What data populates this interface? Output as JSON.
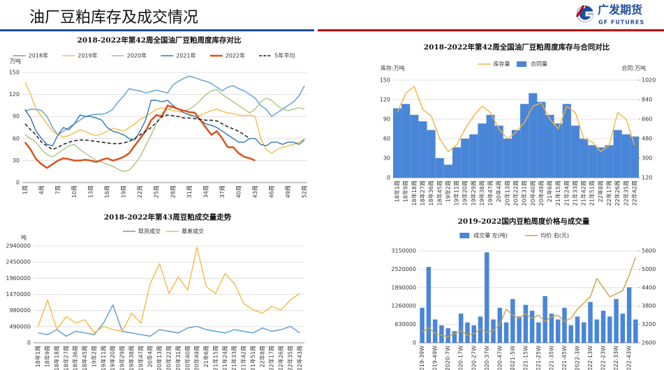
{
  "header": {
    "title": "油厂豆粕库存及成交情况",
    "logo": "广发期货",
    "logo_en": "GF FUTURES"
  },
  "chart_data": [
    {
      "type": "line",
      "title": "2018-2022年第42周全国油厂豆粕周度库存对比",
      "y_label": "万吨",
      "categories": [
        "1周",
        null,
        null,
        "4周",
        null,
        null,
        "7周",
        null,
        null,
        "10周",
        null,
        null,
        "13周",
        null,
        null,
        "16周",
        null,
        null,
        "19周",
        null,
        null,
        "22周",
        null,
        null,
        "25周",
        null,
        null,
        "28周",
        null,
        null,
        "31周",
        null,
        null,
        "34周",
        null,
        null,
        "37周",
        null,
        null,
        "40周",
        null,
        null,
        "43周",
        null,
        null,
        "46周",
        null,
        null,
        "49周",
        null,
        null,
        "52周"
      ],
      "ylim": [
        0,
        150
      ],
      "yticks": [
        0,
        30,
        60,
        90,
        120,
        150
      ],
      "grid": true,
      "series": [
        {
          "name": "2018年",
          "color": "#5b9bd5",
          "type": "line",
          "values": [
            97,
            100,
            100,
            98,
            90,
            75,
            65,
            70,
            75,
            80,
            85,
            90,
            92,
            93,
            93,
            95,
            100,
            110,
            118,
            128,
            126,
            125,
            122,
            124,
            126,
            124,
            122,
            133,
            138,
            142,
            145,
            143,
            140,
            138,
            135,
            130,
            125,
            130,
            132,
            128,
            125,
            120,
            115,
            105,
            100,
            90,
            95,
            100,
            105,
            110,
            118,
            132
          ]
        },
        {
          "name": "2019年",
          "color": "#f2bd4a",
          "type": "line",
          "values": [
            137,
            120,
            100,
            90,
            80,
            70,
            65,
            62,
            64,
            68,
            72,
            70,
            66,
            64,
            66,
            70,
            74,
            72,
            70,
            75,
            80,
            86,
            90,
            95,
            100,
            102,
            100,
            98,
            97,
            95,
            93,
            90,
            92,
            95,
            98,
            100,
            97,
            95,
            94,
            92,
            91,
            92,
            90,
            60,
            45,
            40,
            45,
            48,
            50,
            52,
            55,
            60
          ]
        },
        {
          "name": "2020年",
          "color": "#a9c47f",
          "type": "line",
          "values": [
            65,
            60,
            55,
            45,
            38,
            35,
            40,
            45,
            50,
            52,
            45,
            40,
            35,
            30,
            28,
            25,
            22,
            18,
            15,
            17,
            25,
            35,
            50,
            65,
            80,
            95,
            100,
            102,
            100,
            98,
            100,
            105,
            112,
            120,
            125,
            127,
            120,
            115,
            110,
            105,
            100,
            95,
            100,
            110,
            115,
            112,
            105,
            100,
            98,
            100,
            102,
            100
          ]
        },
        {
          "name": "2021年",
          "color": "#2e75b6",
          "type": "line",
          "values": [
            100,
            88,
            70,
            60,
            52,
            50,
            65,
            75,
            72,
            80,
            92,
            90,
            90,
            88,
            85,
            75,
            70,
            68,
            65,
            60,
            58,
            70,
            85,
            112,
            112,
            110,
            112,
            105,
            100,
            95,
            92,
            90,
            85,
            80,
            78,
            75,
            70,
            65,
            60,
            55,
            55,
            60,
            60,
            52,
            50,
            55,
            55,
            52,
            55,
            55,
            52,
            58
          ]
        },
        {
          "name": "2022年",
          "color": "#d9531e",
          "type": "line",
          "width": 2.5,
          "values": [
            55,
            45,
            32,
            25,
            20,
            25,
            30,
            33,
            32,
            30,
            30,
            31,
            30,
            28,
            31,
            33,
            30,
            32,
            35,
            40,
            50,
            60,
            70,
            85,
            92,
            90,
            105,
            103,
            100,
            98,
            96,
            95,
            85,
            75,
            65,
            70,
            60,
            48,
            48,
            40,
            35,
            33,
            30,
            null,
            null,
            null,
            null,
            null,
            null,
            null,
            null,
            null
          ]
        },
        {
          "name": "5年平均",
          "color": "#111111",
          "type": "line",
          "dashed": true,
          "values": [
            80,
            72,
            65,
            55,
            50,
            45,
            48,
            52,
            55,
            57,
            58,
            58,
            57,
            56,
            55,
            54,
            53,
            53,
            54,
            56,
            60,
            65,
            70,
            75,
            82,
            90,
            92,
            91,
            90,
            88,
            88,
            87,
            86,
            85,
            85,
            84,
            80,
            76,
            73,
            70,
            65,
            60,
            null,
            null,
            null,
            null,
            null,
            null,
            null,
            null,
            null,
            null
          ]
        }
      ]
    },
    {
      "type": "combo",
      "title": "2018-2022年第42周全国油厂豆粕周度库存与合同对比",
      "y_label": "库存:万吨",
      "y2_label": "合同:万吨",
      "categories": [
        "18年1周",
        "18年9周",
        "18年18周",
        "18年27周",
        "18年36周",
        "18年45周",
        "19年2周",
        "19年11周",
        "19年20周",
        "19年29周",
        "19年38周",
        "19年47周",
        "20年4周",
        "20年13周",
        "20年22周",
        "20年31周",
        "20年40周",
        "20年49周",
        "21年6周",
        "21年15周",
        "21年24周",
        "21年33周",
        "21年42周",
        "21年51周",
        "22年8周",
        "22年17周",
        "22年26周",
        "22年35周",
        "22年42周"
      ],
      "ylim": [
        0,
        150
      ],
      "yticks": [
        0,
        30,
        60,
        90,
        120,
        150
      ],
      "y2lim": [
        120,
        1020
      ],
      "y2ticks": [
        120,
        300,
        480,
        660,
        840,
        1020
      ],
      "grid": true,
      "series": [
        {
          "name": "库存量",
          "color": "#f0b43c",
          "type": "line",
          "values": [
            100,
            130,
            140,
            105,
            95,
            60,
            40,
            50,
            75,
            95,
            110,
            100,
            75,
            60,
            70,
            85,
            110,
            115,
            90,
            75,
            110,
            100,
            60,
            55,
            40,
            50,
            100,
            90,
            50
          ]
        },
        {
          "name": "合同量",
          "color": "#4a86d8",
          "type": "bar",
          "axis": "y2",
          "values": [
            760,
            800,
            700,
            640,
            560,
            300,
            240,
            400,
            480,
            520,
            620,
            700,
            600,
            480,
            560,
            800,
            900,
            820,
            700,
            620,
            800,
            600,
            480,
            420,
            400,
            420,
            560,
            520,
            500
          ]
        }
      ]
    },
    {
      "type": "line",
      "title": "2018-2022年第43周豆粕成交量走势",
      "y_label": "吨",
      "categories": [
        "18年1周",
        "18年9周",
        "18年18周",
        "18年27周",
        "18年36周",
        "18年45周",
        "19年2周",
        "19年11周",
        "19年20周",
        "19年29周",
        "19年38周",
        "19年47周",
        "20年4周",
        "20年13周",
        "20年22周",
        "20年31周",
        "20年40周",
        "20年49周",
        "21年6周",
        "21年15周",
        "21年24周",
        "21年33周",
        "21年42周",
        "21年51周",
        "22年8周",
        "22年17周",
        "22年26周",
        "22年35周",
        "22年43周"
      ],
      "ylim": [
        0,
        2940000
      ],
      "yticks": [
        0,
        490000,
        980000,
        1470000,
        1960000,
        2450000,
        2940000
      ],
      "grid": true,
      "series": [
        {
          "name": "现货成交",
          "color": "#5b9bd5",
          "type": "line",
          "values": [
            300000,
            250000,
            400000,
            200000,
            350000,
            300000,
            250000,
            600000,
            1150000,
            350000,
            300000,
            250000,
            200000,
            400000,
            350000,
            300000,
            450000,
            500000,
            400000,
            350000,
            300000,
            400000,
            350000,
            300000,
            450000,
            350000,
            400000,
            500000,
            300000
          ]
        },
        {
          "name": "基差成交",
          "color": "#f4b942",
          "type": "line",
          "values": [
            500000,
            1300000,
            400000,
            800000,
            600000,
            700000,
            300000,
            500000,
            400000,
            350000,
            900000,
            600000,
            1800000,
            2400000,
            1500000,
            2000000,
            1600000,
            2900000,
            1700000,
            1500000,
            2100000,
            1800000,
            1200000,
            1000000,
            900000,
            1100000,
            1000000,
            1300000,
            1500000
          ]
        }
      ]
    },
    {
      "type": "combo",
      "title": "2019-2022国内豆粕周度价格与成交量",
      "categories": [
        "2019-39W",
        null,
        "2019-49W",
        null,
        "2020-7W",
        null,
        "2020-17W",
        null,
        "2020-27W",
        null,
        "2020-37W",
        null,
        "2020-47W",
        null,
        "2021-5W",
        null,
        "2021-15W",
        null,
        "2021-25W",
        null,
        "2021-35W",
        null,
        "2021-45W",
        null,
        "2022-3W",
        null,
        "2022-13W",
        null,
        "2022-23W",
        null,
        "2022-33W",
        null,
        "2022-43W",
        null
      ],
      "ylim": [
        0,
        3150000
      ],
      "yticks": [
        0,
        630000,
        1260000,
        1890000,
        2520000,
        3150000
      ],
      "y2lim": [
        2600,
        5600
      ],
      "y2ticks": [
        2600,
        3200,
        3800,
        4400,
        5000,
        5600
      ],
      "grid": true,
      "series": [
        {
          "name": "成交量 左(吨)",
          "color": "#4a86d8",
          "type": "bar",
          "values": [
            1200000,
            2600000,
            800000,
            600000,
            500000,
            400000,
            1000000,
            700000,
            600000,
            900000,
            3100000,
            800000,
            1200000,
            700000,
            1500000,
            900000,
            1300000,
            1100000,
            700000,
            1600000,
            1000000,
            800000,
            1200000,
            600000,
            900000,
            700000,
            1400000,
            800000,
            1100000,
            900000,
            1500000,
            1000000,
            1900000,
            800000
          ]
        },
        {
          "name": "均价 右(元)",
          "color": "#c9a23f",
          "type": "line",
          "axis": "y2",
          "values": [
            2950,
            3100,
            2900,
            2850,
            2800,
            2900,
            3000,
            2850,
            2900,
            3050,
            2950,
            3000,
            3200,
            3700,
            3500,
            3400,
            3550,
            3400,
            3500,
            3300,
            3450,
            3500,
            3300,
            3400,
            3700,
            3900,
            4100,
            4700,
            4400,
            4100,
            4200,
            4300,
            4800,
            5400
          ]
        }
      ]
    }
  ]
}
